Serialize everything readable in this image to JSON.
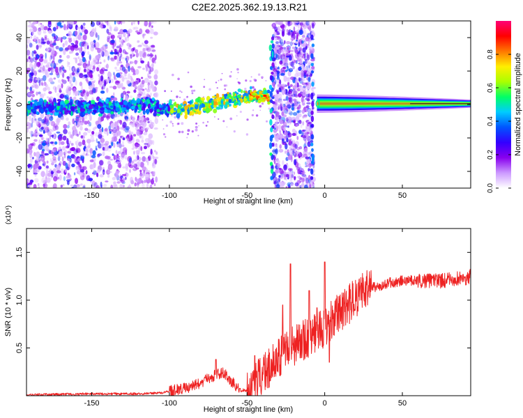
{
  "title": "C2E2.2025.362.19.13.R21",
  "chart_data": [
    {
      "type": "heatmap",
      "xlabel": "Height of straight line (km)",
      "ylabel": "Frequency (Hz)",
      "xlim": [
        -192,
        94
      ],
      "ylim": [
        -50,
        50
      ],
      "xticks": [
        -150,
        -100,
        -50,
        0,
        50
      ],
      "yticks": [
        -40,
        -20,
        0,
        20,
        40
      ],
      "colorbar": {
        "label": "Normalized spectral amplitude",
        "range": [
          0,
          1
        ],
        "ticks": [
          "0.0",
          "0.2",
          "0.4",
          "0.6",
          "0.8"
        ],
        "tick_values": [
          0.0,
          0.2,
          0.4,
          0.6,
          0.8
        ],
        "colors": [
          "#ffffff",
          "#cc99ff",
          "#8800ee",
          "#3300ff",
          "#0055ff",
          "#00ccff",
          "#00ff66",
          "#aaff00",
          "#ffee00",
          "#ff7700",
          "#ff0000",
          "#ff0077"
        ]
      },
      "center_line": {
        "x": [
          -192,
          -150,
          -120,
          -100,
          -90,
          -80,
          -70,
          -60,
          -50,
          -40,
          -35,
          -10,
          0,
          20,
          50,
          94
        ],
        "y": [
          -2,
          -2,
          0,
          -3,
          -3,
          -1,
          1,
          3,
          5,
          5,
          3,
          0,
          1,
          1,
          0,
          0
        ]
      },
      "noise_bands": [
        [
          -192,
          -108
        ],
        [
          -33,
          -7
        ]
      ],
      "strong_segment": {
        "x_range": [
          -5,
          94
        ],
        "freq": 0.5,
        "peak_amplitude": 0.95
      }
    },
    {
      "type": "line",
      "xlabel": "Height of straight line (km)",
      "ylabel": "SNR (10 * v/v)",
      "y_scale_label": "(x10⁴)",
      "xlim": [
        -192,
        94
      ],
      "ylim": [
        0,
        1.75
      ],
      "xticks": [
        -150,
        -100,
        -50,
        0,
        50
      ],
      "yticks": [
        "0.5",
        "1.0",
        "1.5"
      ],
      "ytick_values": [
        0.5,
        1.0,
        1.5
      ],
      "series": [
        {
          "name": "SNR",
          "color": "#ee2222",
          "x": [
            -192,
            -150,
            -120,
            -105,
            -100,
            -90,
            -80,
            -75,
            -70,
            -65,
            -60,
            -55,
            -50,
            -45,
            -40,
            -35,
            -30,
            -25,
            -20,
            -15,
            -10,
            -5,
            0,
            5,
            10,
            15,
            20,
            25,
            30,
            40,
            50,
            60,
            70,
            80,
            90,
            94
          ],
          "y": [
            0.01,
            0.02,
            0.02,
            0.03,
            0.05,
            0.08,
            0.13,
            0.18,
            0.22,
            0.24,
            0.15,
            0.06,
            0.05,
            0.12,
            0.25,
            0.3,
            0.38,
            0.45,
            0.52,
            0.58,
            0.62,
            0.66,
            0.72,
            0.8,
            0.88,
            0.95,
            1.02,
            1.08,
            1.13,
            1.18,
            1.2,
            1.2,
            1.2,
            1.21,
            1.23,
            1.25
          ],
          "spikes": [
            [
              -22,
              1.38
            ],
            [
              0,
              1.4
            ],
            [
              -45,
              0.42
            ],
            [
              -27,
              0.95
            ],
            [
              -10,
              1.1
            ],
            [
              -70,
              0.38
            ],
            [
              3,
              0.35
            ],
            [
              -5,
              0.92
            ]
          ]
        }
      ]
    }
  ]
}
